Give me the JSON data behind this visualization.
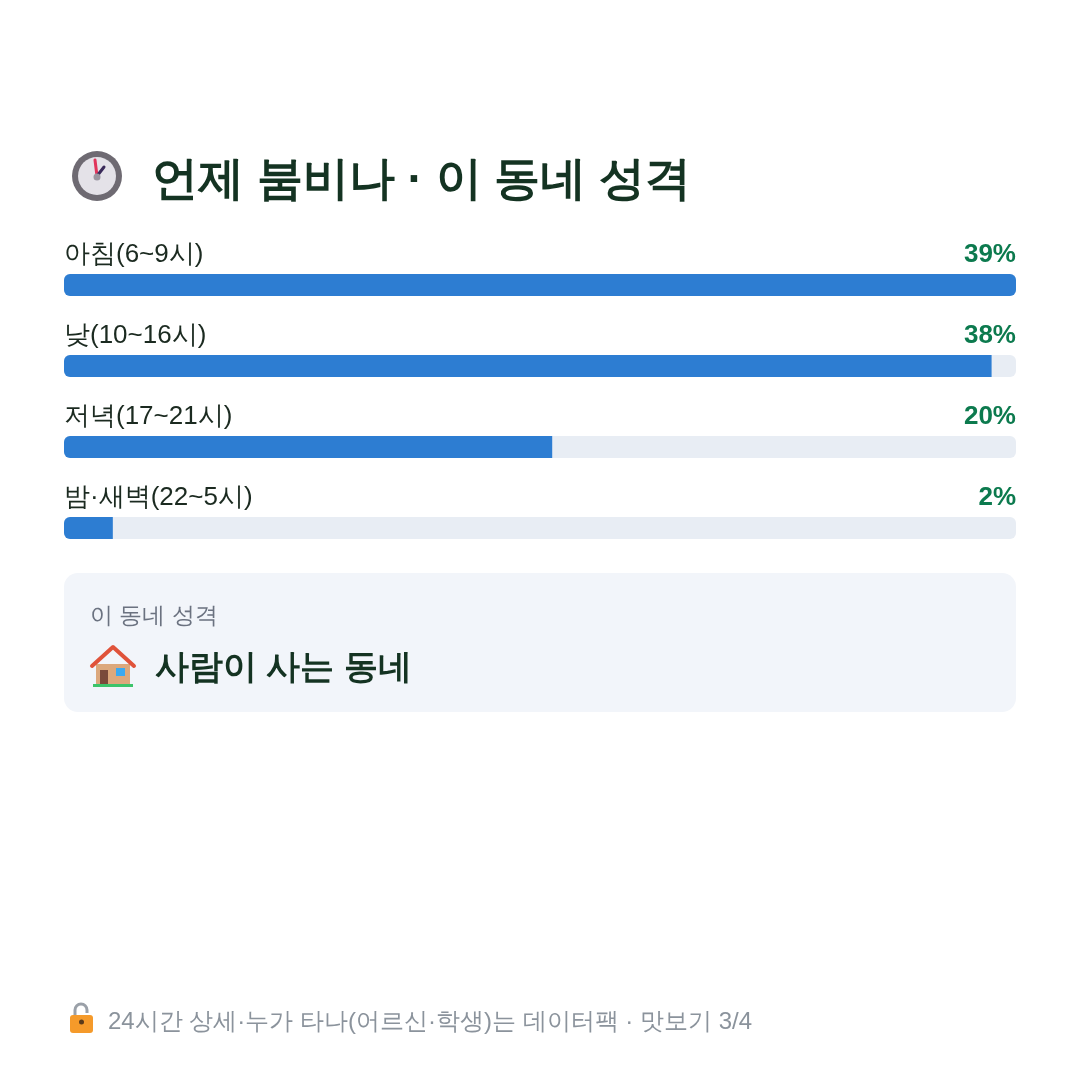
{
  "chart_data": {
    "type": "bar",
    "orientation": "horizontal",
    "title": "언제 붐비나 · 이 동네 성격",
    "categories": [
      "아침(6~9시)",
      "낮(10~16시)",
      "저녁(17~21시)",
      "밤·새벽(22~5시)"
    ],
    "values": [
      39,
      38,
      20,
      2
    ],
    "value_labels": [
      "39%",
      "38%",
      "20%",
      "2%"
    ],
    "color": "#2d7dd2",
    "annotations": [
      "이 동네 성격",
      "사람이 사는 동네",
      "24시간 상세·누가 타나(어르신·학생)는 데이터팩 · 맛보기 3/4"
    ]
  }
}
